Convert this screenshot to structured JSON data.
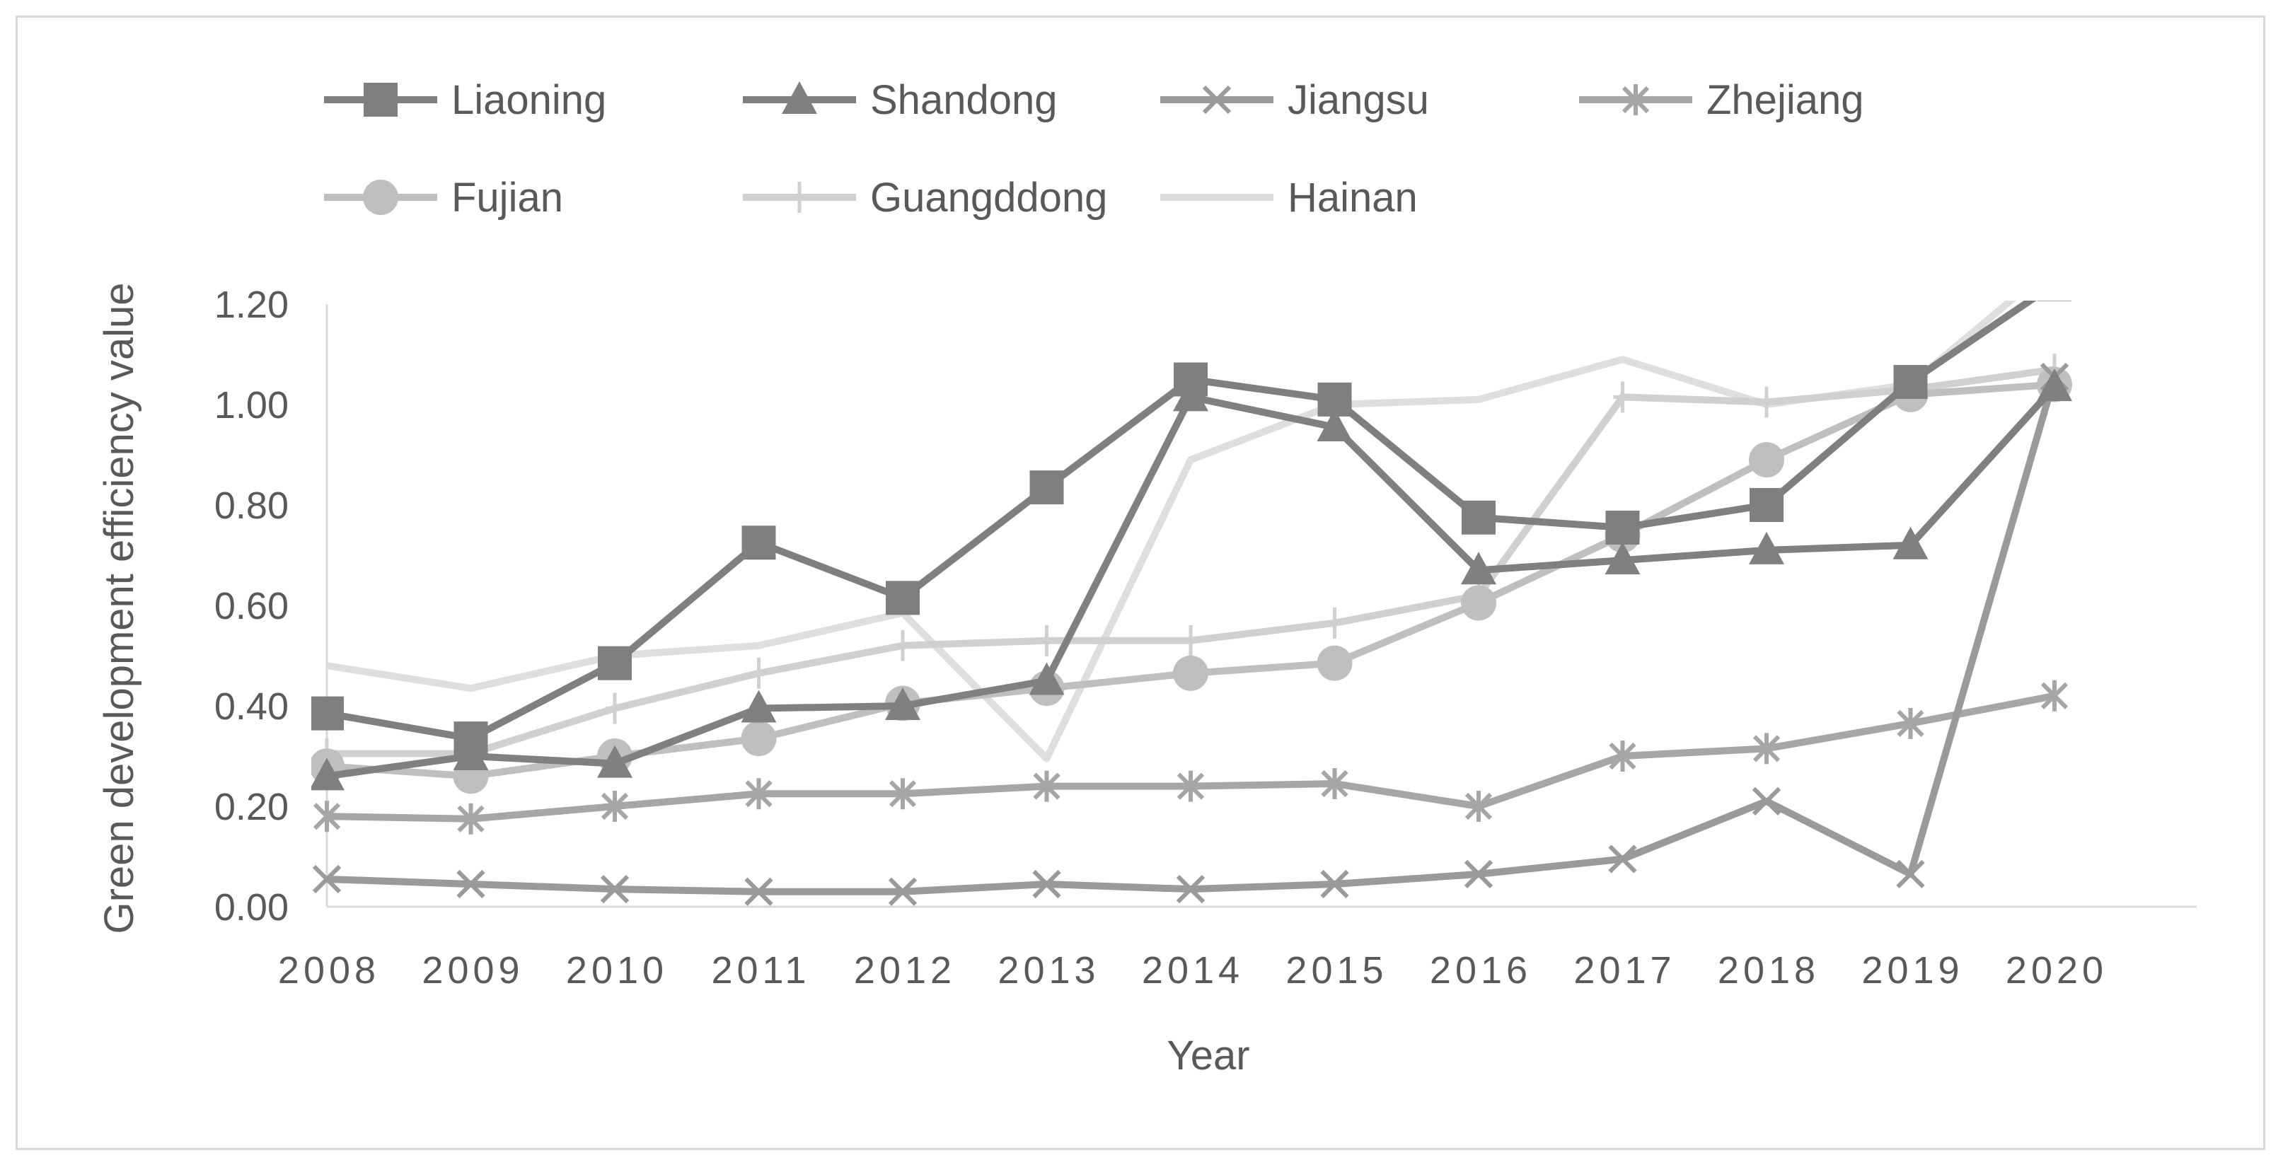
{
  "chart_data": {
    "type": "line",
    "title": "",
    "xlabel": "Year",
    "ylabel": "Green development efficiency value",
    "ylim": [
      0,
      1.2
    ],
    "yticks": [
      "0.00",
      "0.20",
      "0.40",
      "0.60",
      "0.80",
      "1.00",
      "1.20"
    ],
    "categories": [
      "2008",
      "2009",
      "2010",
      "2011",
      "2012",
      "2013",
      "2014",
      "2015",
      "2016",
      "2017",
      "2018",
      "2019",
      "2020"
    ],
    "grid": false,
    "legend_position": "top",
    "series": [
      {
        "name": "Liaoning",
        "marker": "square",
        "color": "#7f7f7f",
        "values": [
          0.385,
          0.335,
          0.485,
          0.725,
          0.615,
          0.835,
          1.05,
          1.01,
          0.775,
          0.755,
          0.8,
          1.045,
          1.24
        ]
      },
      {
        "name": "Shandong",
        "marker": "triangle",
        "color": "#808080",
        "values": [
          0.26,
          0.3,
          0.285,
          0.395,
          0.4,
          0.45,
          1.015,
          0.955,
          0.67,
          0.69,
          0.71,
          0.72,
          1.035
        ]
      },
      {
        "name": "Jiangsu",
        "marker": "x",
        "color": "#9a9a9a",
        "values": [
          0.055,
          0.045,
          0.035,
          0.03,
          0.03,
          0.045,
          0.035,
          0.045,
          0.065,
          0.095,
          0.21,
          0.065,
          1.055
        ]
      },
      {
        "name": "Zhejiang",
        "marker": "star",
        "color": "#a6a6a6",
        "values": [
          0.18,
          0.175,
          0.2,
          0.225,
          0.225,
          0.24,
          0.24,
          0.245,
          0.2,
          0.3,
          0.315,
          0.365,
          0.42
        ]
      },
      {
        "name": "Fujian",
        "marker": "circle",
        "color": "#bfbfbf",
        "values": [
          0.28,
          0.26,
          0.3,
          0.335,
          0.405,
          0.435,
          0.465,
          0.485,
          0.605,
          0.74,
          0.89,
          1.02,
          1.04
        ]
      },
      {
        "name": "Guangddong",
        "marker": "plus",
        "color": "#d0d0d0",
        "values": [
          0.305,
          0.305,
          0.395,
          0.465,
          0.52,
          0.53,
          0.53,
          0.565,
          0.62,
          1.015,
          1.005,
          1.03,
          1.07
        ]
      },
      {
        "name": "Hainan",
        "marker": "none",
        "color": "#dedede",
        "values": [
          0.48,
          0.435,
          0.5,
          0.52,
          0.585,
          0.295,
          0.89,
          1.0,
          1.01,
          1.09,
          1.0,
          1.04,
          1.28
        ]
      }
    ]
  }
}
